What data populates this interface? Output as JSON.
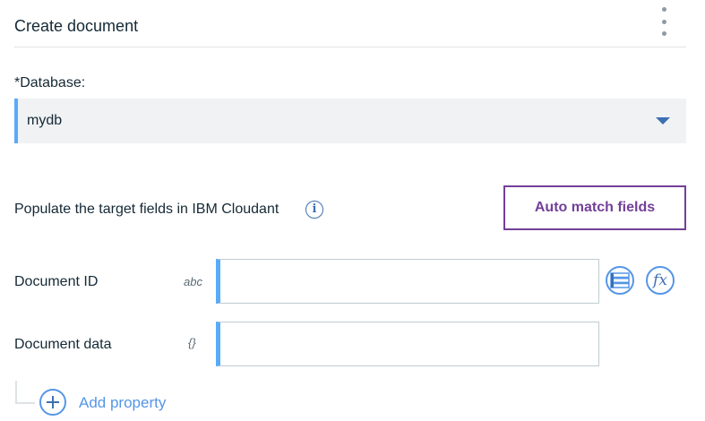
{
  "header": {
    "title": "Create document",
    "menu_icon": "overflow-menu-vertical-icon"
  },
  "database": {
    "label": "*Database:",
    "value": "mydb"
  },
  "populate": {
    "text": "Populate the target fields in IBM Cloudant",
    "auto_match_label": "Auto match fields"
  },
  "fields": [
    {
      "label": "Document ID",
      "type": "abc",
      "value": ""
    },
    {
      "label": "Document data",
      "type": "{}",
      "value": ""
    }
  ],
  "add_property_label": "Add property",
  "colors": {
    "accent": "#5aaafa",
    "button": "#734098",
    "link": "#5596e6"
  }
}
